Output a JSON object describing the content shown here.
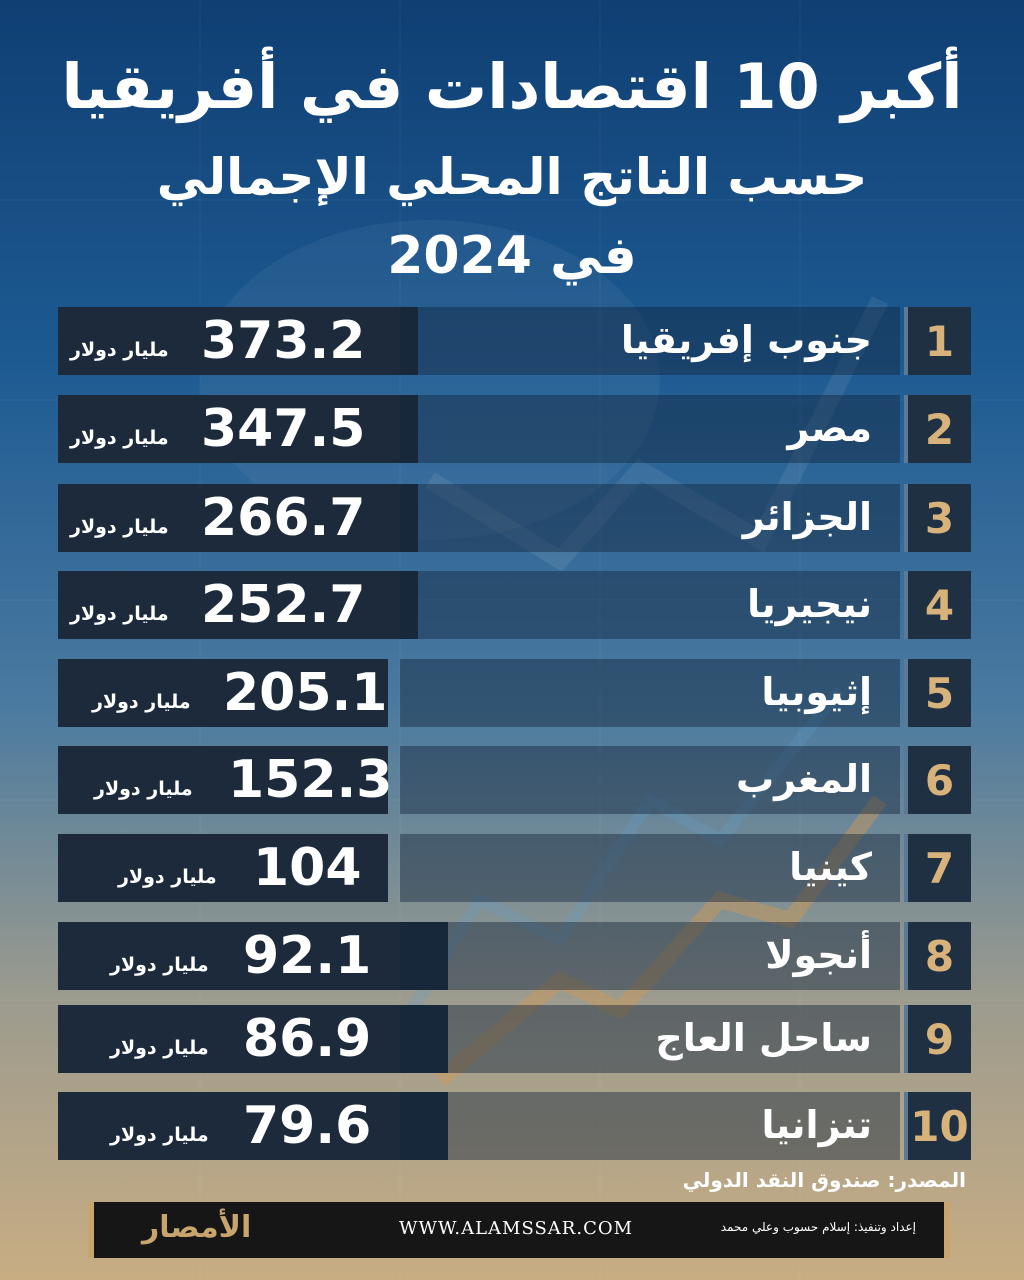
{
  "header": {
    "title_line1": "أكبر 10 اقتصادات في أفريقيا",
    "title_line2": "حسب الناتج المحلي الإجمالي",
    "title_line3": "في 2024"
  },
  "unit_label": "مليار دولار",
  "rows": [
    {
      "rank": "1",
      "country": "جنوب إفريقيا",
      "value": "373.2"
    },
    {
      "rank": "2",
      "country": "مصر",
      "value": "347.5"
    },
    {
      "rank": "3",
      "country": "الجزائر",
      "value": "266.7"
    },
    {
      "rank": "4",
      "country": "نيجيريا",
      "value": "252.7"
    },
    {
      "rank": "5",
      "country": "إثيوبيا",
      "value": "205.1"
    },
    {
      "rank": "6",
      "country": "المغرب",
      "value": "152.3"
    },
    {
      "rank": "7",
      "country": "كينيا",
      "value": "104"
    },
    {
      "rank": "8",
      "country": "أنجولا",
      "value": "92.1"
    },
    {
      "rank": "9",
      "country": "ساحل العاج",
      "value": "86.9"
    },
    {
      "rank": "10",
      "country": "تنزانيا",
      "value": "79.6"
    }
  ],
  "source": "المصدر: صندوق النقد الدولي",
  "footer": {
    "logo": "الأمصار",
    "website": "WWW.ALAMSSAR.COM",
    "credits": "إعداد وتنفيذ: إسلام حسوب وعلي محمد"
  },
  "chart_data": {
    "type": "table",
    "title": "أكبر 10 اقتصادات في أفريقيا",
    "subtitle": "حسب الناتج المحلي الإجمالي في 2024",
    "unit": "مليار دولار",
    "categories": [
      "جنوب إفريقيا",
      "مصر",
      "الجزائر",
      "نيجيريا",
      "إثيوبيا",
      "المغرب",
      "كينيا",
      "أنجولا",
      "ساحل العاج",
      "تنزانيا"
    ],
    "values": [
      373.2,
      347.5,
      266.7,
      252.7,
      205.1,
      152.3,
      104,
      92.1,
      86.9,
      79.6
    ]
  },
  "colors": {
    "rank": "#d7b27a",
    "accent": "#c9a56e"
  }
}
